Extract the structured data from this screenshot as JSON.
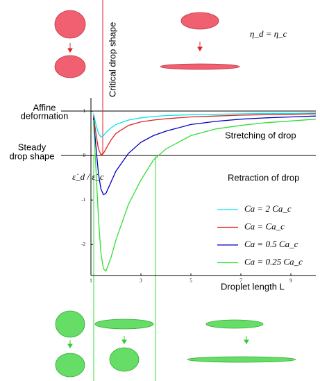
{
  "chart_data": {
    "type": "line",
    "x_label": "Droplet length L",
    "y_label": "ε̇_d / ε̇_c",
    "equation": "η_d = η_c",
    "annotations": {
      "critical": "Critical drop shape",
      "affine": [
        "Affine",
        "deformation"
      ],
      "steady": [
        "Steady",
        "drop shape"
      ],
      "stretching": "Stretching of drop",
      "retraction": "Retraction of drop"
    },
    "x": [
      1.1,
      1.2,
      1.3,
      1.4,
      1.5,
      1.6,
      1.8,
      2,
      2.5,
      3,
      3.5,
      4,
      5,
      6,
      7,
      8,
      9,
      10
    ],
    "series": [
      {
        "name": "Ca = 2 Ca_c",
        "color": "#00e5ee",
        "values": [
          0.95,
          0.7,
          0.5,
          0.42,
          0.45,
          0.52,
          0.62,
          0.7,
          0.8,
          0.85,
          0.88,
          0.9,
          0.92,
          0.93,
          0.94,
          0.95,
          0.95,
          0.96
        ]
      },
      {
        "name": "Ca = Ca_c",
        "color": "#e02020",
        "values": [
          0.9,
          0.5,
          0.15,
          0.02,
          0.05,
          0.15,
          0.35,
          0.5,
          0.68,
          0.76,
          0.8,
          0.83,
          0.87,
          0.89,
          0.91,
          0.92,
          0.93,
          0.94
        ]
      },
      {
        "name": "Ca = 0.5 Ca_c",
        "color": "#0000c0",
        "values": [
          0.85,
          0.2,
          -0.4,
          -0.75,
          -0.88,
          -0.85,
          -0.6,
          -0.35,
          0.05,
          0.3,
          0.45,
          0.55,
          0.7,
          0.77,
          0.82,
          0.85,
          0.87,
          0.89
        ]
      },
      {
        "name": "Ca = 0.25 Ca_c",
        "color": "#33dd33",
        "values": [
          0.8,
          -0.3,
          -1.4,
          -2.2,
          -2.55,
          -2.6,
          -2.3,
          -1.9,
          -1.1,
          -0.55,
          -0.1,
          0.15,
          0.45,
          0.6,
          0.68,
          0.74,
          0.78,
          0.82
        ]
      }
    ],
    "xlim": [
      1,
      10
    ],
    "ylim": [
      -2.7,
      1.3
    ],
    "xticks": [
      1,
      3,
      5,
      7,
      9
    ],
    "yticks": [
      -2,
      -1,
      0,
      1
    ]
  }
}
